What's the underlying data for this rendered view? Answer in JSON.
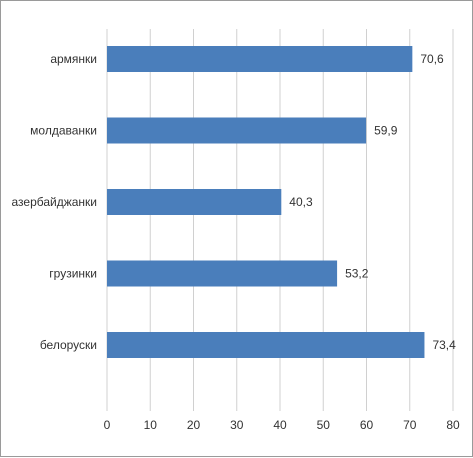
{
  "chart_data": {
    "type": "bar",
    "orientation": "horizontal",
    "title": "",
    "xlabel": "",
    "ylabel": "",
    "categories": [
      "армянки",
      "молдаванки",
      "азербайджанки",
      "грузинки",
      "белоруски"
    ],
    "values": [
      70.6,
      59.9,
      40.3,
      53.2,
      73.4
    ],
    "value_labels": [
      "70,6",
      "59,9",
      "40,3",
      "53,2",
      "73,4"
    ],
    "xlim": [
      0,
      80
    ],
    "xticks": [
      0,
      10,
      20,
      30,
      40,
      50,
      60,
      70,
      80
    ],
    "grid": "vertical",
    "legend": "none",
    "bar_color": "#4a7ebb"
  }
}
